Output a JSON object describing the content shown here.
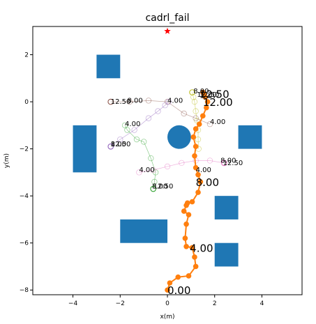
{
  "chart_data": {
    "type": "scatter",
    "title": "cadrl_fail",
    "xlabel": "x(m)",
    "ylabel": "y(m)",
    "xlim": [
      -5.7,
      5.7
    ],
    "ylim": [
      -8.2,
      3.2
    ],
    "xticks": [
      -4,
      -2,
      0,
      2,
      4
    ],
    "yticks": [
      -8,
      -6,
      -4,
      -2,
      0,
      2
    ],
    "xtick_labels": [
      "−4",
      "−2",
      "0",
      "2",
      "4"
    ],
    "ytick_labels": [
      "−8",
      "−6",
      "−4",
      "−2",
      "0",
      "2"
    ],
    "grid": false,
    "goal": {
      "x": 0,
      "y": 3,
      "color": "#ff0000"
    },
    "obstacles": {
      "color": "#1f77b4",
      "rectangles": [
        {
          "x0": -3,
          "y0": 1,
          "x1": -2,
          "y1": 2
        },
        {
          "x0": -4,
          "y0": -3,
          "x1": -3,
          "y1": -1
        },
        {
          "x0": 3,
          "y0": -2,
          "x1": 4,
          "y1": -1
        },
        {
          "x0": -2,
          "y0": -6,
          "x1": 0,
          "y1": -5
        },
        {
          "x0": 2,
          "y0": -5,
          "x1": 3,
          "y1": -4
        },
        {
          "x0": 2,
          "y0": -7,
          "x1": 3,
          "y1": -6
        }
      ],
      "circles": [
        {
          "cx": 0.5,
          "cy": -1.5,
          "r": 0.5
        }
      ]
    },
    "robot": {
      "color": "#ff7f0e",
      "x": [
        0.0,
        0.1,
        0.45,
        0.9,
        1.2,
        1.15,
        1.05,
        0.8,
        0.75,
        0.8,
        0.9,
        0.7,
        0.8,
        0.85,
        1.05,
        1.3,
        1.4,
        1.3,
        1.2,
        1.15,
        1.2,
        1.1,
        1.2,
        1.35,
        1.5,
        1.65,
        1.7,
        1.6,
        1.55,
        1.5
      ],
      "y": [
        -8.0,
        -7.7,
        -7.45,
        -7.4,
        -7.0,
        -6.6,
        -6.2,
        -6.15,
        -5.8,
        -5.2,
        -4.8,
        -4.65,
        -4.4,
        -4.3,
        -4.25,
        -3.85,
        -3.4,
        -3.1,
        -2.8,
        -2.3,
        -1.9,
        -1.5,
        -1.15,
        -0.95,
        -0.6,
        -0.25,
        0.0,
        0.2,
        0.35,
        0.4
      ]
    },
    "agents": [
      {
        "color": "#bcbd22",
        "x": [
          1.05,
          1.1,
          1.15,
          1.2,
          1.25,
          1.3,
          1.3,
          1.32
        ],
        "y": [
          0.4,
          0.2,
          0.0,
          -0.4,
          -0.8,
          -1.2,
          -1.6,
          -2.0
        ]
      },
      {
        "color": "#8c564b",
        "x": [
          -2.4,
          -1.6,
          -0.8,
          0.0,
          0.7,
          1.2,
          1.8
        ],
        "y": [
          0.0,
          0.0,
          0.05,
          0.0,
          -0.5,
          -0.7,
          -0.95
        ]
      },
      {
        "color": "#2ca02c",
        "x": [
          -0.6,
          -0.55,
          -0.5,
          -0.7,
          -1.0,
          -1.3,
          -1.7,
          -1.8
        ],
        "y": [
          -3.7,
          -3.4,
          -3.0,
          -2.4,
          -1.7,
          -1.6,
          -1.2,
          -1.0
        ]
      },
      {
        "color": "#9467bd",
        "x": [
          -2.4,
          -2.0,
          -1.4,
          -0.8,
          -0.4,
          -0.1,
          0.05
        ],
        "y": [
          -1.9,
          -1.6,
          -1.2,
          -0.7,
          -0.4,
          -0.15,
          0.0
        ]
      },
      {
        "color": "#e377c2",
        "x": [
          2.4,
          1.8,
          1.2,
          0.6,
          0.0,
          -0.6,
          -1.2
        ],
        "y": [
          -2.6,
          -2.5,
          -2.5,
          -2.6,
          -2.75,
          -2.9,
          -3.0
        ]
      }
    ],
    "annotations": [
      {
        "x": 0.0,
        "y": -8.0,
        "text": "0.00",
        "size": "large"
      },
      {
        "x": 0.95,
        "y": -6.2,
        "text": "4.00",
        "size": "large"
      },
      {
        "x": 1.2,
        "y": -3.4,
        "text": "8.00",
        "size": "large"
      },
      {
        "x": 1.5,
        "y": 0.0,
        "text": "12.00",
        "size": "large"
      },
      {
        "x": 1.35,
        "y": 0.35,
        "text": "12.50",
        "size": "large"
      },
      {
        "x": 1.1,
        "y": 0.45,
        "text": "8.00",
        "size": "small"
      },
      {
        "x": 1.25,
        "y": 0.3,
        "text": "12.00",
        "size": "small"
      },
      {
        "x": 1.35,
        "y": 0.3,
        "text": "12.50",
        "size": "small"
      },
      {
        "x": 1.2,
        "y": -2.9,
        "text": "4.00",
        "size": "small"
      },
      {
        "x": -2.4,
        "y": 0.0,
        "text": "12.50",
        "size": "small"
      },
      {
        "x": -1.7,
        "y": 0.05,
        "text": "8.00",
        "size": "small"
      },
      {
        "x": 0.0,
        "y": 0.05,
        "text": "4.00",
        "size": "small"
      },
      {
        "x": 1.8,
        "y": -0.85,
        "text": "4.00",
        "size": "small"
      },
      {
        "x": -1.8,
        "y": -0.95,
        "text": "4.00",
        "size": "small"
      },
      {
        "x": -2.4,
        "y": -1.8,
        "text": "8.00",
        "size": "small"
      },
      {
        "x": -2.4,
        "y": -1.8,
        "text": "12.50",
        "size": "small"
      },
      {
        "x": -1.2,
        "y": -2.9,
        "text": "4.00",
        "size": "small"
      },
      {
        "x": -0.65,
        "y": -3.6,
        "text": "8.00",
        "size": "small"
      },
      {
        "x": -0.6,
        "y": -3.6,
        "text": "12.50",
        "size": "small"
      },
      {
        "x": 2.25,
        "y": -2.5,
        "text": "8.00",
        "size": "small"
      },
      {
        "x": 2.35,
        "y": -2.6,
        "text": "12.50",
        "size": "small"
      }
    ]
  }
}
